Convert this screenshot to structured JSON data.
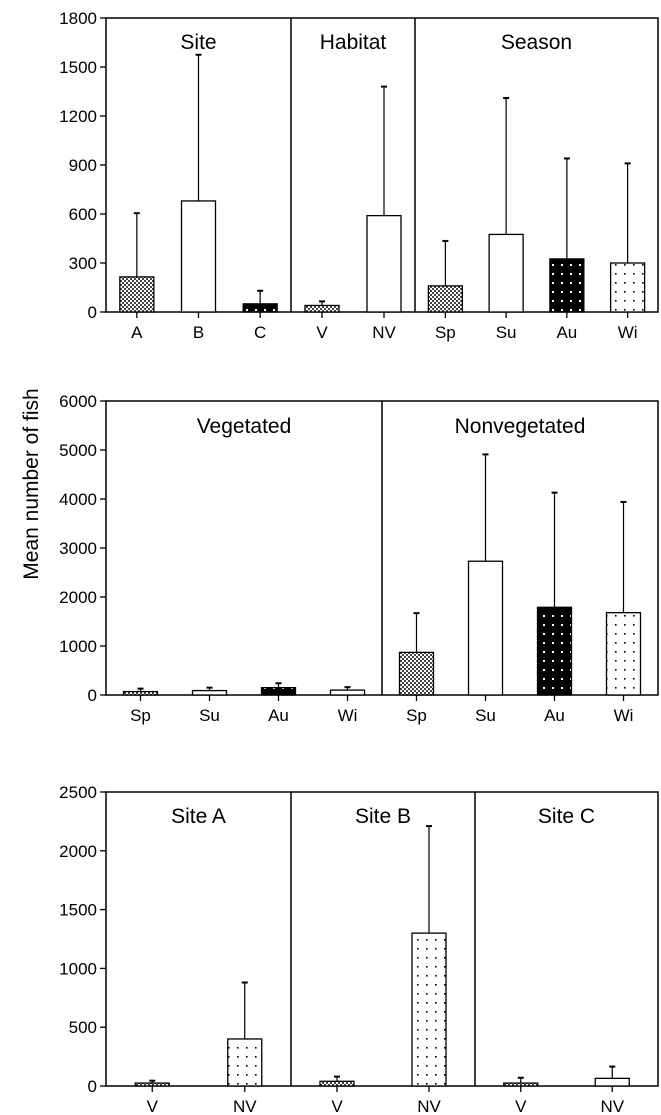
{
  "ylabel": "Mean number of fish",
  "chart_data": [
    {
      "type": "bar",
      "ylim": [
        0,
        1800
      ],
      "yticks": [
        0,
        300,
        600,
        900,
        1200,
        1500,
        1800
      ],
      "error_bars": "upper",
      "groups": [
        {
          "title": "Site",
          "bars": [
            {
              "label": "A",
              "value": 215,
              "error_top": 605,
              "pattern": "checker"
            },
            {
              "label": "B",
              "value": 680,
              "error_top": 1575,
              "pattern": "white"
            },
            {
              "label": "C",
              "value": 50,
              "error_top": 130,
              "pattern": "black"
            }
          ]
        },
        {
          "title": "Habitat",
          "bars": [
            {
              "label": "V",
              "value": 40,
              "error_top": 65,
              "pattern": "checker"
            },
            {
              "label": "NV",
              "value": 590,
              "error_top": 1380,
              "pattern": "white"
            }
          ]
        },
        {
          "title": "Season",
          "bars": [
            {
              "label": "Sp",
              "value": 160,
              "error_top": 435,
              "pattern": "checker"
            },
            {
              "label": "Su",
              "value": 475,
              "error_top": 1310,
              "pattern": "white"
            },
            {
              "label": "Au",
              "value": 325,
              "error_top": 940,
              "pattern": "black"
            },
            {
              "label": "Wi",
              "value": 300,
              "error_top": 910,
              "pattern": "dots"
            }
          ]
        }
      ]
    },
    {
      "type": "bar",
      "ylim": [
        0,
        6000
      ],
      "yticks": [
        0,
        1000,
        2000,
        3000,
        4000,
        5000,
        6000
      ],
      "error_bars": "upper",
      "groups": [
        {
          "title": "Vegetated",
          "bars": [
            {
              "label": "Sp",
              "value": 70,
              "error_top": 130,
              "pattern": "checker"
            },
            {
              "label": "Su",
              "value": 90,
              "error_top": 150,
              "pattern": "white"
            },
            {
              "label": "Au",
              "value": 150,
              "error_top": 240,
              "pattern": "black"
            },
            {
              "label": "Wi",
              "value": 100,
              "error_top": 160,
              "pattern": "dots"
            }
          ]
        },
        {
          "title": "Nonvegetated",
          "bars": [
            {
              "label": "Sp",
              "value": 870,
              "error_top": 1670,
              "pattern": "checker"
            },
            {
              "label": "Su",
              "value": 2730,
              "error_top": 4910,
              "pattern": "white"
            },
            {
              "label": "Au",
              "value": 1790,
              "error_top": 4130,
              "pattern": "black"
            },
            {
              "label": "Wi",
              "value": 1680,
              "error_top": 3940,
              "pattern": "dots"
            }
          ]
        }
      ]
    },
    {
      "type": "bar",
      "ylim": [
        0,
        2500
      ],
      "yticks": [
        0,
        500,
        1000,
        1500,
        2000,
        2500
      ],
      "error_bars": "upper",
      "groups": [
        {
          "title": "Site A",
          "bars": [
            {
              "label": "V",
              "value": 25,
              "error_top": 45,
              "pattern": "checker"
            },
            {
              "label": "NV",
              "value": 400,
              "error_top": 880,
              "pattern": "dots"
            }
          ]
        },
        {
          "title": "Site B",
          "bars": [
            {
              "label": "V",
              "value": 40,
              "error_top": 80,
              "pattern": "checker"
            },
            {
              "label": "NV",
              "value": 1300,
              "error_top": 2210,
              "pattern": "dots"
            }
          ]
        },
        {
          "title": "Site C",
          "bars": [
            {
              "label": "V",
              "value": 25,
              "error_top": 70,
              "pattern": "checker"
            },
            {
              "label": "NV",
              "value": 65,
              "error_top": 165,
              "pattern": "white"
            }
          ]
        }
      ]
    }
  ]
}
